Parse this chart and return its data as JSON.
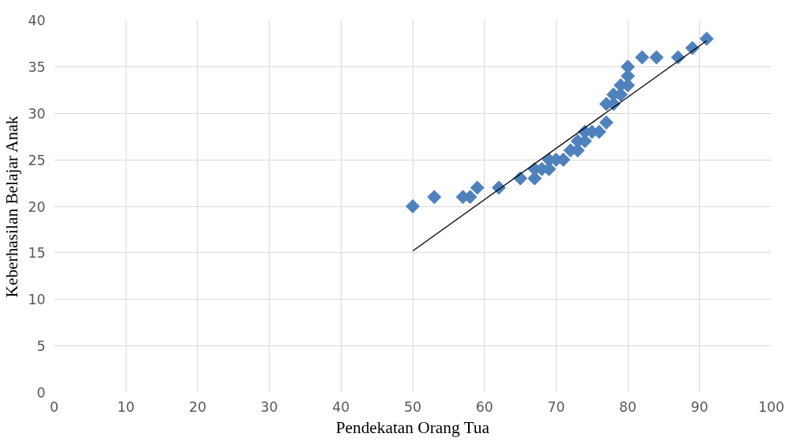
{
  "chart_data": {
    "type": "scatter",
    "xlabel": "Pendekatan Orang Tua",
    "ylabel": "Keberhasilan Belajar Anak",
    "xlim": [
      0,
      100
    ],
    "ylim": [
      0,
      40
    ],
    "xticks": [
      0,
      10,
      20,
      30,
      40,
      50,
      60,
      70,
      80,
      90,
      100
    ],
    "yticks": [
      0,
      5,
      10,
      15,
      20,
      25,
      30,
      35,
      40
    ],
    "grid": true,
    "series": [
      {
        "marker": "diamond",
        "color": "#4f81bd",
        "x": [
          50,
          53,
          57,
          58,
          59,
          62,
          65,
          67,
          67,
          68,
          69,
          69,
          70,
          71,
          72,
          73,
          73,
          74,
          74,
          75,
          76,
          77,
          77,
          78,
          78,
          79,
          79,
          80,
          80,
          80,
          82,
          84,
          87,
          89,
          91
        ],
        "values": [
          20,
          21,
          21,
          21,
          22,
          22,
          23,
          24,
          23,
          24,
          25,
          24,
          25,
          25,
          26,
          27,
          26,
          28,
          27,
          28,
          28,
          29,
          31,
          32,
          31,
          33,
          32,
          33,
          34,
          35,
          36,
          36,
          36,
          37,
          38
        ]
      },
      {
        "type": "line",
        "marker": "none",
        "color": "#000000",
        "x": [
          50,
          91
        ],
        "values": [
          15.2,
          37.8
        ]
      }
    ]
  }
}
